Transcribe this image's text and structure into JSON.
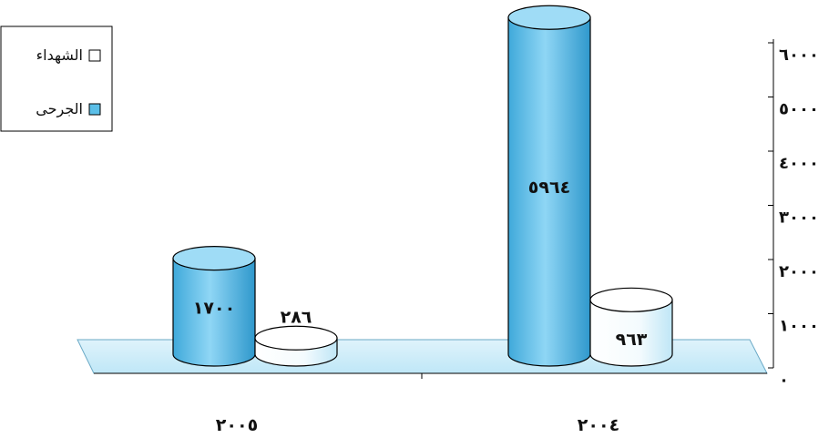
{
  "chart_data": {
    "type": "bar",
    "title": "",
    "xlabel": "",
    "ylabel": "",
    "categories": [
      "٢٠٠٥",
      "٢٠٠٤"
    ],
    "series": [
      {
        "name": "الجرحى",
        "values": [
          1700,
          5964
        ],
        "value_labels": [
          "١٧٠٠",
          "٥٩٦٤"
        ],
        "color": "#5bbfe8"
      },
      {
        "name": "الشهداء",
        "values": [
          286,
          963
        ],
        "value_labels": [
          "٢٨٦",
          "٩٦٣"
        ],
        "color": "#ffffff"
      }
    ],
    "ylim": [
      0,
      6000
    ],
    "yticks": [
      0,
      1000,
      2000,
      3000,
      4000,
      5000,
      6000
    ],
    "ytick_labels": [
      "٠",
      "١٠٠٠",
      "٢٠٠٠",
      "٣٠٠٠",
      "٤٠٠٠",
      "٥٠٠٠",
      "٦٠٠٠"
    ],
    "y_axis_position": "right",
    "grid": false,
    "legend": "top-left",
    "legend_entries": [
      "الشهداء",
      "الجرحى"
    ],
    "style": "3d-cylinder"
  }
}
